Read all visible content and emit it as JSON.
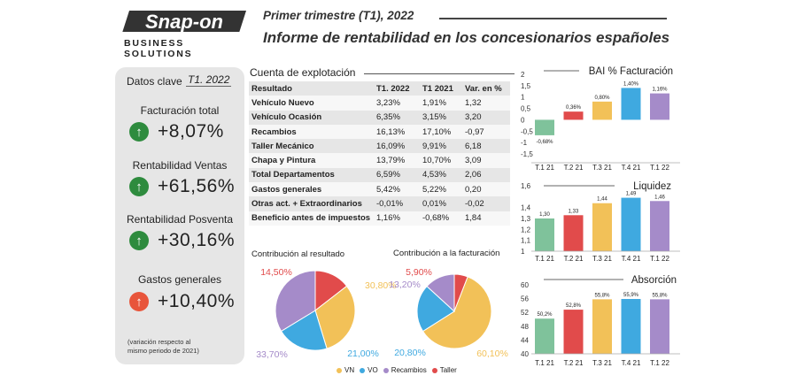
{
  "header": {
    "logo_text": "Snap-on",
    "logo_sub": "BUSINESS SOLUTIONS",
    "period": "Primer trimestre (T1), 2022",
    "title": "Informe de rentabilidad en los concesionarios españoles"
  },
  "key_data": {
    "title": "Datos clave",
    "period": "T1. 2022",
    "items": [
      {
        "label": "Facturación total",
        "value": "+8,07%",
        "direction": "up",
        "color": "#2e8b3e"
      },
      {
        "label": "Rentabilidad Ventas",
        "value": "+61,56%",
        "direction": "up",
        "color": "#2e8b3e"
      },
      {
        "label": "Rentabilidad Posventa",
        "value": "+30,16%",
        "direction": "up",
        "color": "#2e8b3e"
      },
      {
        "label": "Gastos generales",
        "value": "+10,40%",
        "direction": "up",
        "color": "#e8553b"
      }
    ],
    "footnote_1": "(variación respecto al",
    "footnote_2": "mismo periodo de 2021)"
  },
  "table": {
    "title": "Cuenta de explotación",
    "headers": [
      "Resultado",
      "T1. 2022",
      "T1 2021",
      "Var. en %"
    ],
    "rows": [
      [
        "Vehículo Nuevo",
        "3,23%",
        "1,91%",
        "1,32"
      ],
      [
        "Vehículo Ocasión",
        "6,35%",
        "3,15%",
        "3,20"
      ],
      [
        "Recambios",
        "16,13%",
        "17,10%",
        "-0,97"
      ],
      [
        "Taller Mecánico",
        "16,09%",
        "9,91%",
        "6,18"
      ],
      [
        "Chapa y Pintura",
        "13,79%",
        "10,70%",
        "3,09"
      ],
      [
        "Total Departamentos",
        "6,59%",
        "4,53%",
        "2,06"
      ],
      [
        "Gastos generales",
        "5,42%",
        "5,22%",
        "0,20"
      ],
      [
        "Otras act. + Extraordinarios",
        "-0,01%",
        "0,01%",
        "-0,02"
      ],
      [
        "Beneficio antes de impuestos",
        "1,16%",
        "-0,68%",
        "1,84"
      ]
    ]
  },
  "colors": {
    "vn": "#f2c158",
    "vo": "#3fa9e0",
    "recambios": "#a58bc9",
    "taller": "#e14b4b",
    "q1_21": "#7fc29b",
    "q2_21": "#e14b4b",
    "q3_21": "#f2c158",
    "q4_21": "#3fa9e0",
    "q1_22": "#a58bc9"
  },
  "legend": {
    "vn": "VN",
    "vo": "VO",
    "recambios": "Recambios",
    "taller": "Taller"
  },
  "chart_data": [
    {
      "type": "pie",
      "title": "Contribución al resultado",
      "labels": [
        "VN",
        "VO",
        "Recambios",
        "Taller"
      ],
      "values": [
        30.8,
        21.0,
        33.7,
        14.5
      ],
      "value_labels": [
        "30,80%",
        "21,00%",
        "33,70%",
        "14,50%"
      ]
    },
    {
      "type": "pie",
      "title": "Contribución a la facturación",
      "labels": [
        "VN",
        "VO",
        "Recambios",
        "Taller"
      ],
      "values": [
        60.1,
        20.8,
        13.2,
        5.9
      ],
      "value_labels": [
        "60,10%",
        "20,80%",
        "13,20%",
        "5,90%"
      ]
    },
    {
      "type": "bar",
      "title": "BAI % Facturación",
      "categories": [
        "T.1 21",
        "T.2 21",
        "T.3 21",
        "T.4 21",
        "T.1 22"
      ],
      "values": [
        -0.68,
        0.36,
        0.8,
        1.4,
        1.16
      ],
      "value_labels": [
        "-0,68%",
        "0,36%",
        "0,80%",
        "1,40%",
        "1,16%"
      ],
      "yticks": [
        "2",
        "1,5",
        "1",
        "0,5",
        "0",
        "-0,5",
        "-1",
        "-1,5"
      ],
      "ylim": [
        -1.5,
        2
      ]
    },
    {
      "type": "bar",
      "title": "Liquidez",
      "categories": [
        "T.1 21",
        "T.2 21",
        "T.3 21",
        "T.4 21",
        "T.1 22"
      ],
      "values": [
        1.3,
        1.33,
        1.44,
        1.49,
        1.46
      ],
      "value_labels": [
        "1,30",
        "1,33",
        "1,44",
        "1,49",
        "1,46"
      ],
      "yticks": [
        "1,6",
        "1,4",
        "1,3",
        "1,2",
        "1,1",
        "1"
      ],
      "ylim": [
        1,
        1.6
      ]
    },
    {
      "type": "bar",
      "title": "Absorción",
      "categories": [
        "T.1 21",
        "T.2 21",
        "T.3 21",
        "T.4 21",
        "T.1 22"
      ],
      "values": [
        50.2,
        52.8,
        55.8,
        55.9,
        55.8
      ],
      "value_labels": [
        "50,2%",
        "52,8%",
        "55,8%",
        "55,9%",
        "55,8%"
      ],
      "yticks": [
        "60",
        "56",
        "52",
        "48",
        "44",
        "40"
      ],
      "ylim": [
        40,
        60
      ]
    }
  ]
}
